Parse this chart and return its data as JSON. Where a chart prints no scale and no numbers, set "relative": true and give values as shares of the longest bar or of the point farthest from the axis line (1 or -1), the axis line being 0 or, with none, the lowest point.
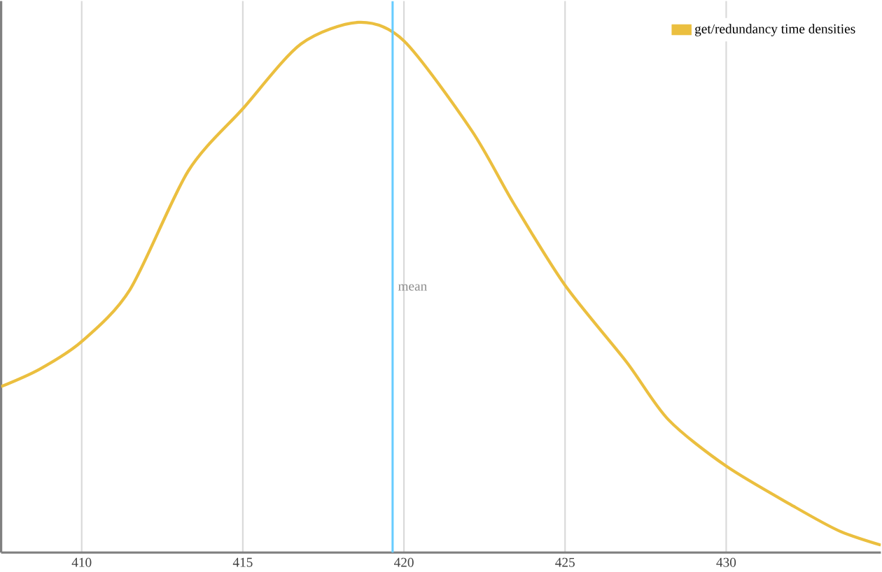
{
  "chart_data": {
    "type": "line",
    "relative": true,
    "xlim": [
      407.5,
      434.8
    ],
    "xticks": [
      410,
      415,
      420,
      425,
      430
    ],
    "grid": "x",
    "legend": "top right",
    "series": [
      {
        "name": "get/redundancy time densities",
        "color": "#ebbf3f",
        "x": [
          407.5,
          408.7,
          410,
          411.5,
          413.3,
          415,
          416.8,
          418.6,
          420,
          422.1,
          423.4,
          425,
          426.9,
          428.2,
          430,
          432.1,
          433.5,
          434.8
        ],
        "values": [
          0.313,
          0.346,
          0.398,
          0.496,
          0.719,
          0.837,
          0.959,
          1.0,
          0.965,
          0.796,
          0.659,
          0.504,
          0.36,
          0.251,
          0.163,
          0.087,
          0.041,
          0.014
        ]
      }
    ],
    "ref_lines": [
      {
        "axis": "x",
        "value": 419.65,
        "label": "mean",
        "color": "#66ccff"
      }
    ]
  }
}
